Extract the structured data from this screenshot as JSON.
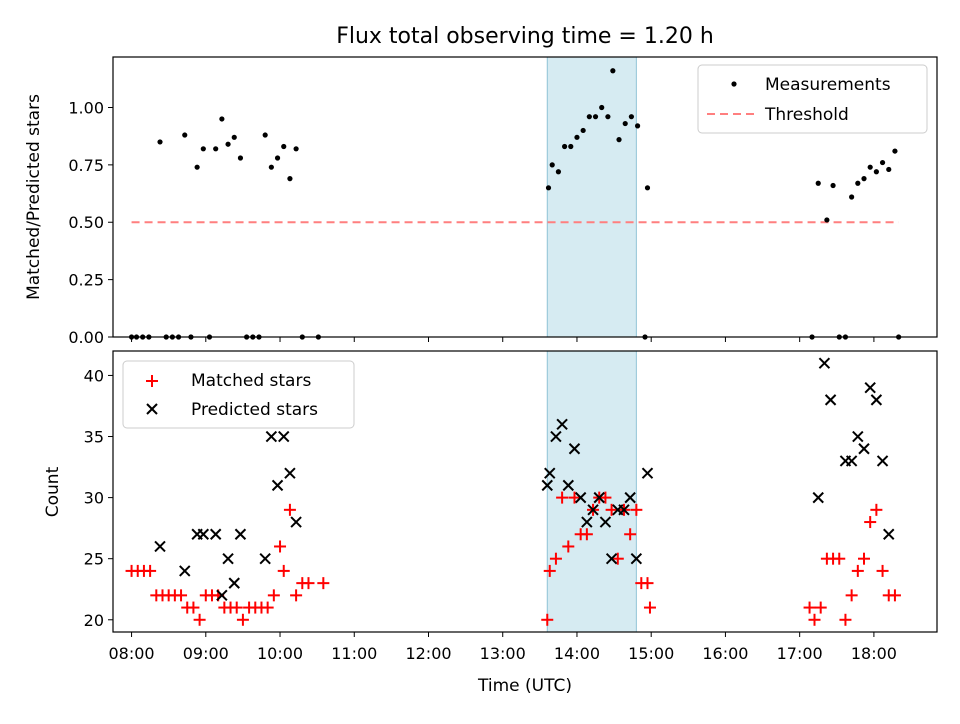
{
  "figure": {
    "title": "Flux total observing time = 1.20 h"
  },
  "colors": {
    "measurement": "#000000",
    "threshold": "#ff7f7f",
    "matched": "#ff0000",
    "predicted": "#000000",
    "highlight": "#add8e6"
  },
  "chart_data": [
    {
      "type": "scatter",
      "panel": "top",
      "title": "Flux total observing time = 1.20 h",
      "xlabel": "",
      "ylabel": "Matched/Predicted stars",
      "xlim": [
        "07:45",
        "18:51"
      ],
      "ylim": [
        0.0,
        1.22
      ],
      "yticks": [
        0.0,
        0.25,
        0.5,
        0.75,
        1.0
      ],
      "ytick_labels": [
        "0.00",
        "0.25",
        "0.50",
        "0.75",
        "1.00"
      ],
      "highlight_span": [
        "13:36",
        "14:48"
      ],
      "legend": {
        "placement": "top-right",
        "entries": [
          "Measurements",
          "Threshold"
        ]
      },
      "series": [
        {
          "name": "Measurements",
          "style": "dot",
          "points": [
            [
              "08:00",
              0.0
            ],
            [
              "08:04",
              0.0
            ],
            [
              "08:09",
              0.0
            ],
            [
              "08:14",
              0.0
            ],
            [
              "08:23",
              0.85
            ],
            [
              "08:28",
              0.0
            ],
            [
              "08:33",
              0.0
            ],
            [
              "08:38",
              0.0
            ],
            [
              "08:43",
              0.88
            ],
            [
              "08:48",
              0.0
            ],
            [
              "08:53",
              0.74
            ],
            [
              "08:58",
              0.82
            ],
            [
              "09:03",
              0.0
            ],
            [
              "09:08",
              0.82
            ],
            [
              "09:13",
              0.95
            ],
            [
              "09:18",
              0.84
            ],
            [
              "09:23",
              0.87
            ],
            [
              "09:28",
              0.78
            ],
            [
              "09:33",
              0.0
            ],
            [
              "09:38",
              0.0
            ],
            [
              "09:43",
              0.0
            ],
            [
              "09:48",
              0.88
            ],
            [
              "09:53",
              0.74
            ],
            [
              "09:58",
              0.78
            ],
            [
              "10:03",
              0.83
            ],
            [
              "10:08",
              0.69
            ],
            [
              "10:13",
              0.82
            ],
            [
              "10:18",
              0.0
            ],
            [
              "10:31",
              0.0
            ],
            [
              "13:37",
              0.65
            ],
            [
              "13:40",
              0.75
            ],
            [
              "13:45",
              0.72
            ],
            [
              "13:50",
              0.83
            ],
            [
              "13:55",
              0.83
            ],
            [
              "14:00",
              0.87
            ],
            [
              "14:05",
              0.9
            ],
            [
              "14:10",
              0.96
            ],
            [
              "14:15",
              0.96
            ],
            [
              "14:20",
              1.0
            ],
            [
              "14:25",
              0.96
            ],
            [
              "14:29",
              1.16
            ],
            [
              "14:34",
              0.86
            ],
            [
              "14:39",
              0.93
            ],
            [
              "14:44",
              0.96
            ],
            [
              "14:49",
              0.92
            ],
            [
              "14:55",
              0.0
            ],
            [
              "14:57",
              0.65
            ],
            [
              "17:10",
              0.0
            ],
            [
              "17:15",
              0.67
            ],
            [
              "17:22",
              0.51
            ],
            [
              "17:27",
              0.66
            ],
            [
              "17:32",
              0.0
            ],
            [
              "17:37",
              0.0
            ],
            [
              "17:42",
              0.61
            ],
            [
              "17:47",
              0.67
            ],
            [
              "17:52",
              0.69
            ],
            [
              "17:57",
              0.74
            ],
            [
              "18:02",
              0.72
            ],
            [
              "18:07",
              0.76
            ],
            [
              "18:12",
              0.73
            ],
            [
              "18:17",
              0.81
            ],
            [
              "18:20",
              0.0
            ]
          ]
        },
        {
          "name": "Threshold",
          "style": "dashed-line",
          "points": [
            [
              "08:00",
              0.5
            ],
            [
              "18:20",
              0.5
            ]
          ]
        }
      ]
    },
    {
      "type": "scatter",
      "panel": "bottom",
      "xlabel": "Time (UTC)",
      "ylabel": "Count",
      "xlim": [
        "07:45",
        "18:51"
      ],
      "ylim": [
        19.0,
        42.0
      ],
      "xticks": [
        "08:00",
        "09:00",
        "10:00",
        "11:00",
        "12:00",
        "13:00",
        "14:00",
        "15:00",
        "16:00",
        "17:00",
        "18:00"
      ],
      "yticks": [
        20,
        25,
        30,
        35,
        40
      ],
      "highlight_span": [
        "13:36",
        "14:48"
      ],
      "legend": {
        "placement": "top-left",
        "entries": [
          "Matched stars",
          "Predicted stars"
        ]
      },
      "series": [
        {
          "name": "Matched stars",
          "style": "plus",
          "points": [
            [
              "08:00",
              24
            ],
            [
              "08:05",
              24
            ],
            [
              "08:10",
              24
            ],
            [
              "08:15",
              24
            ],
            [
              "08:20",
              22
            ],
            [
              "08:25",
              22
            ],
            [
              "08:30",
              22
            ],
            [
              "08:35",
              22
            ],
            [
              "08:40",
              22
            ],
            [
              "08:45",
              21
            ],
            [
              "08:50",
              21
            ],
            [
              "08:55",
              20
            ],
            [
              "09:00",
              22
            ],
            [
              "09:05",
              22
            ],
            [
              "09:10",
              22
            ],
            [
              "09:15",
              21
            ],
            [
              "09:20",
              21
            ],
            [
              "09:25",
              21
            ],
            [
              "09:30",
              20
            ],
            [
              "09:35",
              21
            ],
            [
              "09:40",
              21
            ],
            [
              "09:45",
              21
            ],
            [
              "09:50",
              21
            ],
            [
              "09:55",
              22
            ],
            [
              "10:00",
              26
            ],
            [
              "10:03",
              24
            ],
            [
              "10:08",
              29
            ],
            [
              "10:13",
              22
            ],
            [
              "10:18",
              23
            ],
            [
              "10:23",
              23
            ],
            [
              "10:35",
              23
            ],
            [
              "13:36",
              20
            ],
            [
              "13:38",
              24
            ],
            [
              "13:43",
              25
            ],
            [
              "13:48",
              30
            ],
            [
              "13:53",
              26
            ],
            [
              "13:58",
              30
            ],
            [
              "14:03",
              27
            ],
            [
              "14:08",
              27
            ],
            [
              "14:13",
              29
            ],
            [
              "14:18",
              30
            ],
            [
              "14:23",
              30
            ],
            [
              "14:28",
              29
            ],
            [
              "14:33",
              25
            ],
            [
              "14:38",
              29
            ],
            [
              "14:43",
              27
            ],
            [
              "14:48",
              29
            ],
            [
              "14:52",
              23
            ],
            [
              "14:57",
              23
            ],
            [
              "14:59",
              21
            ],
            [
              "17:08",
              21
            ],
            [
              "17:12",
              20
            ],
            [
              "17:17",
              21
            ],
            [
              "17:22",
              25
            ],
            [
              "17:27",
              25
            ],
            [
              "17:32",
              25
            ],
            [
              "17:37",
              20
            ],
            [
              "17:42",
              22
            ],
            [
              "17:47",
              24
            ],
            [
              "17:52",
              25
            ],
            [
              "17:57",
              28
            ],
            [
              "18:02",
              29
            ],
            [
              "18:07",
              24
            ],
            [
              "18:12",
              22
            ],
            [
              "18:17",
              22
            ]
          ]
        },
        {
          "name": "Predicted stars",
          "style": "x",
          "points": [
            [
              "08:23",
              26
            ],
            [
              "08:43",
              24
            ],
            [
              "08:53",
              27
            ],
            [
              "08:58",
              27
            ],
            [
              "09:08",
              27
            ],
            [
              "09:13",
              22
            ],
            [
              "09:18",
              25
            ],
            [
              "09:23",
              23
            ],
            [
              "09:28",
              27
            ],
            [
              "09:48",
              25
            ],
            [
              "09:53",
              35
            ],
            [
              "09:58",
              31
            ],
            [
              "10:03",
              35
            ],
            [
              "10:08",
              32
            ],
            [
              "10:13",
              28
            ],
            [
              "13:36",
              31
            ],
            [
              "13:38",
              32
            ],
            [
              "13:43",
              35
            ],
            [
              "13:48",
              36
            ],
            [
              "13:53",
              31
            ],
            [
              "13:58",
              34
            ],
            [
              "14:03",
              30
            ],
            [
              "14:08",
              28
            ],
            [
              "14:13",
              29
            ],
            [
              "14:18",
              30
            ],
            [
              "14:23",
              28
            ],
            [
              "14:28",
              25
            ],
            [
              "14:33",
              29
            ],
            [
              "14:38",
              29
            ],
            [
              "14:43",
              30
            ],
            [
              "14:48",
              25
            ],
            [
              "14:57",
              32
            ],
            [
              "17:15",
              30
            ],
            [
              "17:20",
              41
            ],
            [
              "17:25",
              38
            ],
            [
              "17:37",
              33
            ],
            [
              "17:42",
              33
            ],
            [
              "17:47",
              35
            ],
            [
              "17:52",
              34
            ],
            [
              "17:57",
              39
            ],
            [
              "18:02",
              38
            ],
            [
              "18:07",
              33
            ],
            [
              "18:12",
              27
            ]
          ]
        }
      ]
    }
  ]
}
